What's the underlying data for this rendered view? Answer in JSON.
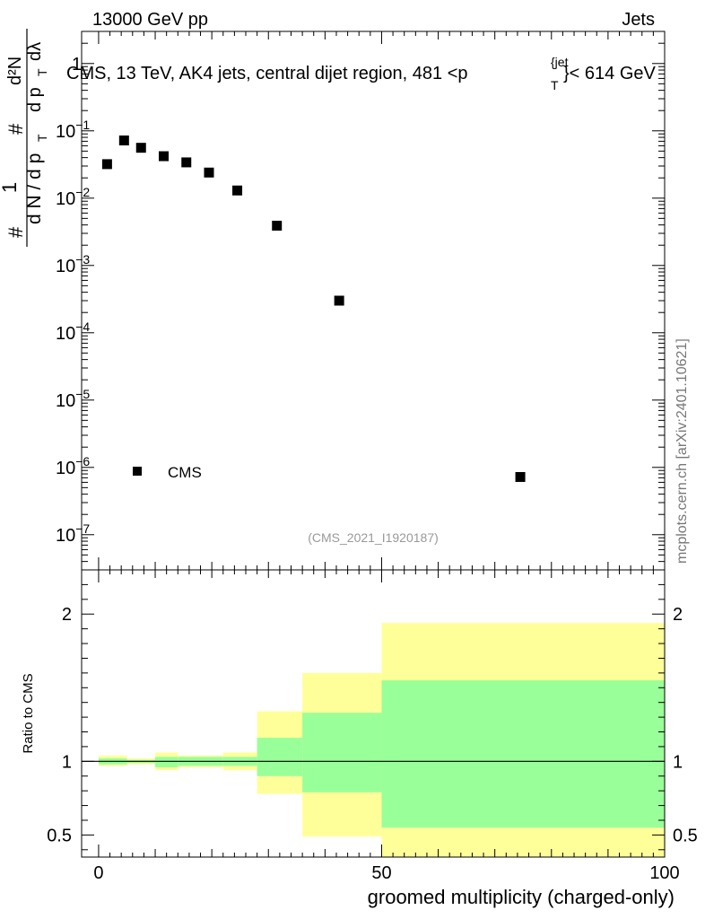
{
  "header": {
    "left": "13000 GeV pp",
    "right": "Jets"
  },
  "watermark": "mcplots.cern.ch [arXiv:2401.10621]",
  "analysis_id": "(CMS_2021_I1920187)",
  "chart_data": [
    {
      "type": "scatter",
      "panel": "main",
      "title": "CMS, 13 TeV, AK4 jets, central dijet region, 481 <p{jet}T< 614 GeV",
      "title_parts": {
        "before": "CMS, 13 TeV, AK4 jets, central dijet region, 481 <p",
        "superscript": "{jet",
        "subscript": "T",
        "after": "}< 614 GeV"
      },
      "ylabel_parts": {
        "hash": "#",
        "one": "1",
        "den": "d N / d p",
        "den_sub": "T",
        "hash2": "#",
        "num2": "d²N",
        "den2": "d p",
        "den2_sub": "T",
        "den2_tail": "dλ"
      },
      "yscale": "log",
      "ylim": [
        3e-08,
        3
      ],
      "xlim": [
        -3,
        100
      ],
      "ytick_labels": [
        {
          "value": 1,
          "label": "1",
          "exp": ""
        },
        {
          "value": 0.1,
          "label": "10",
          "exp": "−1"
        },
        {
          "value": 0.01,
          "label": "10",
          "exp": "−2"
        },
        {
          "value": 0.001,
          "label": "10",
          "exp": "−3"
        },
        {
          "value": 0.0001,
          "label": "10",
          "exp": "−4"
        },
        {
          "value": 1e-05,
          "label": "10",
          "exp": "−5"
        },
        {
          "value": 1e-06,
          "label": "10",
          "exp": "−6"
        },
        {
          "value": 1e-07,
          "label": "10",
          "exp": "−7"
        }
      ],
      "series": [
        {
          "name": "CMS",
          "color": "#000000",
          "points": [
            {
              "x": 1.5,
              "y": 0.032
            },
            {
              "x": 4.5,
              "y": 0.072
            },
            {
              "x": 7.5,
              "y": 0.056
            },
            {
              "x": 11.5,
              "y": 0.042
            },
            {
              "x": 15.5,
              "y": 0.034
            },
            {
              "x": 19.5,
              "y": 0.024
            },
            {
              "x": 24.5,
              "y": 0.013
            },
            {
              "x": 31.5,
              "y": 0.0039
            },
            {
              "x": 42.5,
              "y": 0.0003
            },
            {
              "x": 74.5,
              "y": 7.2e-07
            }
          ]
        }
      ],
      "legend": {
        "label": "CMS",
        "position": "bottom-left"
      }
    },
    {
      "type": "area",
      "panel": "ratio",
      "ylabel": "Ratio to CMS",
      "xlabel": "groomed multiplicity (charged-only)",
      "xlim": [
        -3,
        100
      ],
      "ylim": [
        0.35,
        2.3
      ],
      "xtick_labels": [
        {
          "value": 0,
          "label": "0"
        },
        {
          "value": 50,
          "label": "50"
        },
        {
          "value": 100,
          "label": "100"
        }
      ],
      "ytick_labels": [
        {
          "value": 2,
          "label": "2"
        },
        {
          "value": 1,
          "label": "1"
        },
        {
          "value": 0.5,
          "label": "0.5"
        }
      ],
      "reference_line": 1,
      "bands": {
        "outer_color": "#ffff99",
        "inner_color": "#99ff99",
        "bins": [
          {
            "x0": 0,
            "x1": 5,
            "outer": [
              0.97,
              1.04
            ],
            "inner": [
              0.98,
              1.02
            ]
          },
          {
            "x0": 5,
            "x1": 10,
            "outer": [
              0.98,
              1.02
            ],
            "inner": [
              0.99,
              1.01
            ]
          },
          {
            "x0": 10,
            "x1": 14,
            "outer": [
              0.94,
              1.06
            ],
            "inner": [
              0.96,
              1.03
            ]
          },
          {
            "x0": 14,
            "x1": 22,
            "outer": [
              0.96,
              1.04
            ],
            "inner": [
              0.97,
              1.03
            ]
          },
          {
            "x0": 22,
            "x1": 28,
            "outer": [
              0.94,
              1.06
            ],
            "inner": [
              0.97,
              1.03
            ]
          },
          {
            "x0": 28,
            "x1": 36,
            "outer": [
              0.78,
              1.34
            ],
            "inner": [
              0.9,
              1.16
            ]
          },
          {
            "x0": 36,
            "x1": 50,
            "outer": [
              0.49,
              1.6
            ],
            "inner": [
              0.79,
              1.33
            ]
          },
          {
            "x0": 50,
            "x1": 100,
            "outer": [
              0.35,
              1.94
            ],
            "inner": [
              0.55,
              1.55
            ]
          }
        ]
      }
    }
  ]
}
